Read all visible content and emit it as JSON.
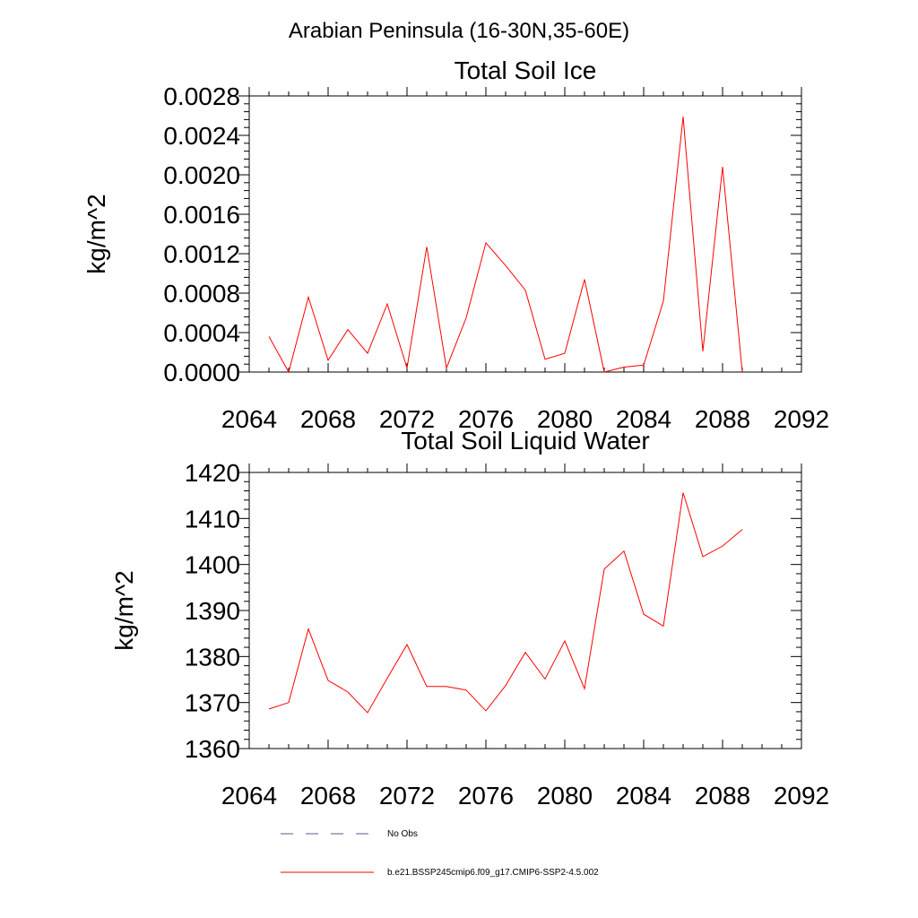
{
  "figure": {
    "suptitle": "Arabian Peninsula (16-30N,35-60E)"
  },
  "legend": {
    "entries": [
      {
        "label": "No Obs",
        "color": "#5a5a8c",
        "dash": "dashed"
      },
      {
        "label": "b.e21.BSSP245cmip6.f09_g17.CMIP6-SSP2-4.5.002",
        "color": "#ff0000",
        "dash": "solid"
      }
    ]
  },
  "chart_data": [
    {
      "type": "line",
      "title": "Total Soil Ice",
      "xlabel": "",
      "ylabel": "kg/m^2",
      "xlim": [
        2064,
        2092
      ],
      "ylim": [
        0,
        0.0028
      ],
      "xticks": [
        2064,
        2068,
        2072,
        2076,
        2080,
        2084,
        2088,
        2092
      ],
      "xtick_labels": [
        "2064",
        "2068",
        "2072",
        "2076",
        "2080",
        "2084",
        "2088",
        "2092"
      ],
      "yticks": [
        0,
        0.0004,
        0.0008,
        0.0012,
        0.0016,
        0.002,
        0.0024,
        0.0028
      ],
      "ytick_labels": [
        "0.0000",
        "0.0004",
        "0.0008",
        "0.0012",
        "0.0016",
        "0.0020",
        "0.0024",
        "0.0028"
      ],
      "grid": false,
      "series": [
        {
          "name": "b.e21.BSSP245cmip6.f09_g17.CMIP6-SSP2-4.5.002",
          "color": "#ff0000",
          "x": [
            2065,
            2066,
            2067,
            2068,
            2069,
            2070,
            2071,
            2072,
            2073,
            2074,
            2075,
            2076,
            2077,
            2078,
            2079,
            2080,
            2081,
            2082,
            2083,
            2084,
            2085,
            2086,
            2087,
            2088,
            2089
          ],
          "values": [
            0.00036,
            0.0,
            0.00076,
            0.00012,
            0.00043,
            0.00019,
            0.00069,
            4e-05,
            0.00127,
            4e-05,
            0.00055,
            0.00131,
            0.00108,
            0.00083,
            0.00013,
            0.00019,
            0.00094,
            0.0,
            5e-05,
            7e-05,
            0.00072,
            0.00259,
            0.00021,
            0.00208,
            0.0
          ]
        }
      ]
    },
    {
      "type": "line",
      "title": "Total Soil Liquid Water",
      "xlabel": "",
      "ylabel": "kg/m^2",
      "xlim": [
        2064,
        2092
      ],
      "ylim": [
        1360,
        1420
      ],
      "xticks": [
        2064,
        2068,
        2072,
        2076,
        2080,
        2084,
        2088,
        2092
      ],
      "xtick_labels": [
        "2064",
        "2068",
        "2072",
        "2076",
        "2080",
        "2084",
        "2088",
        "2092"
      ],
      "yticks": [
        1360,
        1370,
        1380,
        1390,
        1400,
        1410,
        1420
      ],
      "ytick_labels": [
        "1360",
        "1370",
        "1380",
        "1390",
        "1400",
        "1410",
        "1420"
      ],
      "grid": false,
      "series": [
        {
          "name": "b.e21.BSSP245cmip6.f09_g17.CMIP6-SSP2-4.5.002",
          "color": "#ff0000",
          "x": [
            2065,
            2066,
            2067,
            2068,
            2069,
            2070,
            2071,
            2072,
            2073,
            2074,
            2075,
            2076,
            2077,
            2078,
            2079,
            2080,
            2081,
            2082,
            2083,
            2084,
            2085,
            2086,
            2087,
            2088,
            2089
          ],
          "values": [
            1368.6,
            1370.0,
            1386.0,
            1374.8,
            1372.3,
            1367.8,
            1375.3,
            1382.6,
            1373.5,
            1373.5,
            1372.7,
            1368.2,
            1373.7,
            1380.9,
            1375.1,
            1383.4,
            1373.0,
            1399.0,
            1402.9,
            1389.2,
            1386.6,
            1415.6,
            1401.7,
            1404.0,
            1407.6
          ]
        }
      ]
    }
  ]
}
